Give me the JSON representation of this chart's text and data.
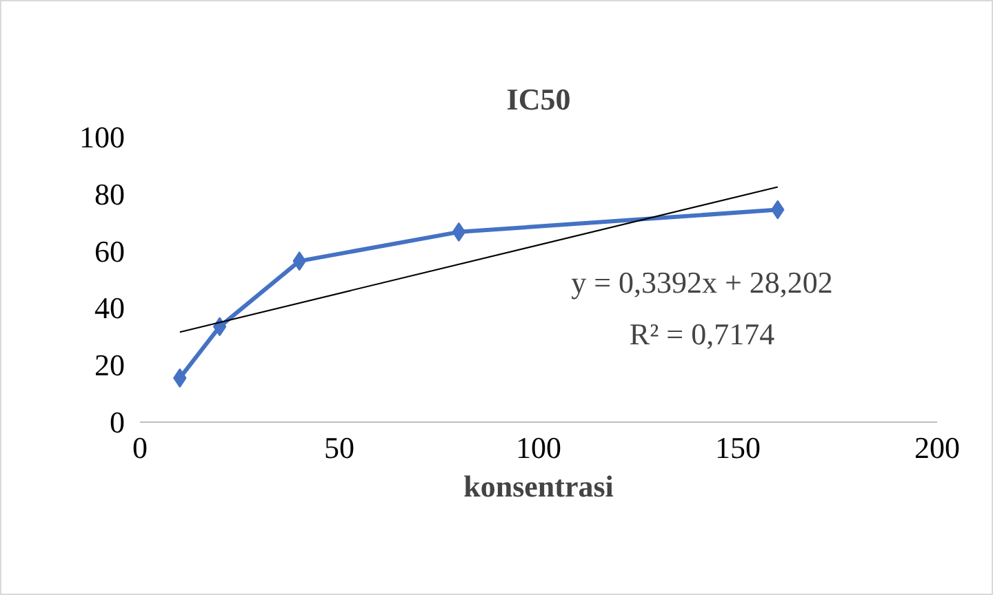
{
  "chart_data": {
    "type": "line",
    "title": "IC50",
    "xlabel": "konsentrasi",
    "series": [
      {
        "color": "#4472c4",
        "x": [
          10,
          20,
          40,
          80,
          160
        ],
        "values": [
          15.5,
          33.5,
          56.5,
          66.7,
          74.5
        ],
        "marker": "diamond"
      },
      {
        "color": "#000000",
        "x": [
          10,
          160
        ],
        "values": [
          31.6,
          82.5
        ],
        "marker": "none"
      }
    ],
    "xlim": [
      0,
      200
    ],
    "xticks": [
      0,
      50,
      100,
      150,
      200
    ],
    "ylim": [
      0,
      100
    ],
    "yticks": [
      0,
      20,
      40,
      60,
      80,
      100
    ],
    "annotations": [
      "y = 0,3392x + 28,202",
      "R² = 0,7174"
    ],
    "grid": false
  }
}
